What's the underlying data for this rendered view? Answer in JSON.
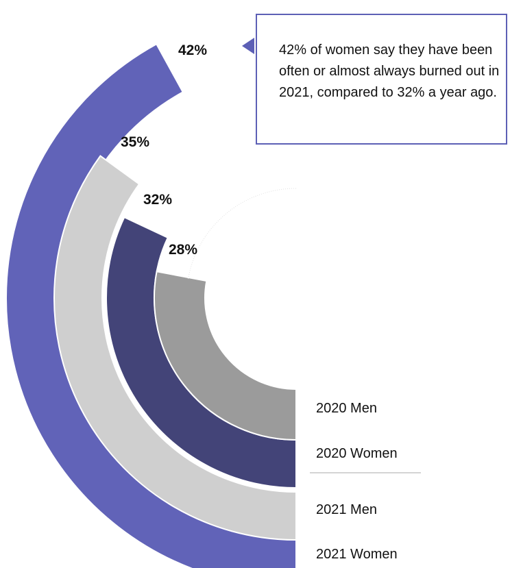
{
  "chart_data": {
    "type": "radial-bar",
    "unit": "%",
    "series": [
      {
        "name": "2021 Women",
        "value": 42,
        "label": "42%",
        "color": "#6163b8"
      },
      {
        "name": "2021 Men",
        "value": 35,
        "label": "35%",
        "color": "#cfcfcf"
      },
      {
        "name": "2020 Women",
        "value": 32,
        "label": "32%",
        "color": "#434478"
      },
      {
        "name": "2020 Men",
        "value": 28,
        "label": "28%",
        "color": "#9b9b9b"
      }
    ],
    "legend_placement": "bottom-right",
    "grid": false
  },
  "callout": {
    "text": "42% of women say they have been often or almost always burned out in 2021, compared to 32% a year ago.",
    "border_color": "#5c5fb5"
  },
  "divider_color": "#d4d4d4"
}
